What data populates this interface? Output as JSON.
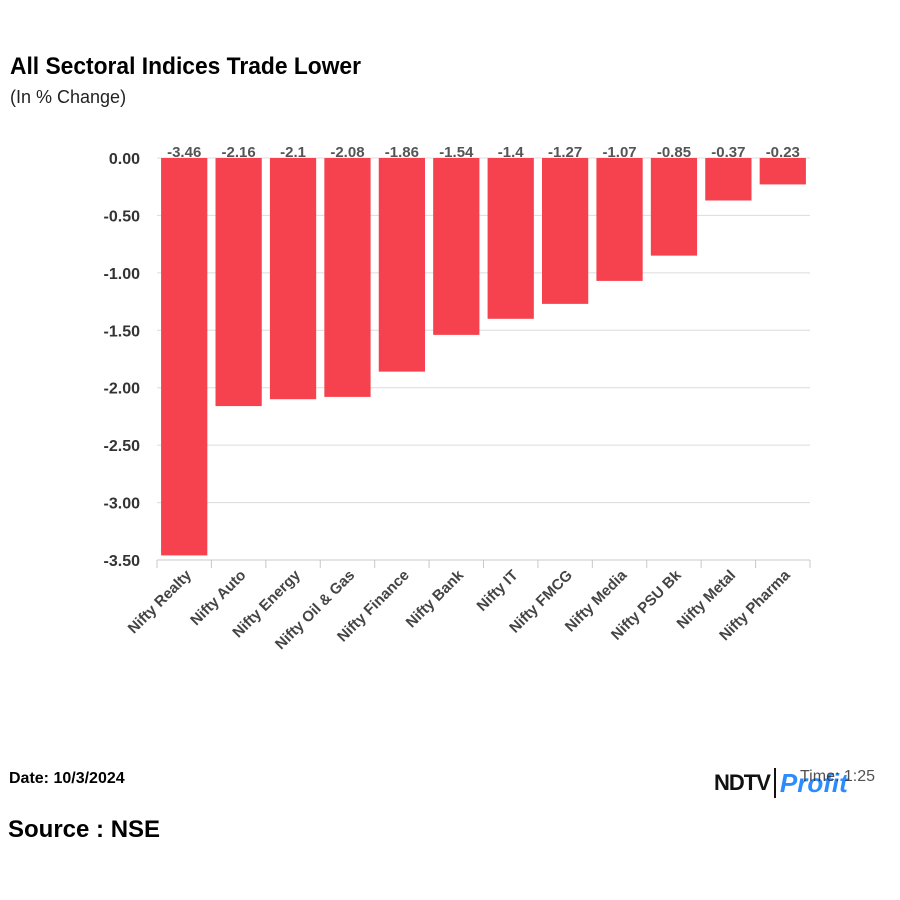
{
  "chart_data": {
    "type": "bar",
    "title": "All Sectoral Indices Trade Lower",
    "subtitle": "(In % Change)",
    "categories": [
      "Nifty Realty",
      "Nifty Auto",
      "Nifty Energy",
      "Nifty Oil & Gas",
      "Nifty Finance",
      "Nifty Bank",
      "Nifty IT",
      "Nifty FMCG",
      "Nifty Media",
      "Nifty PSU Bk",
      "Nifty Metal",
      "Nifty Pharma"
    ],
    "values": [
      -3.46,
      -2.16,
      -2.1,
      -2.08,
      -1.86,
      -1.54,
      -1.4,
      -1.27,
      -1.07,
      -0.85,
      -0.37,
      -0.23
    ],
    "yticks": [
      "0.00",
      "-0.50",
      "-1.00",
      "-1.50",
      "-2.00",
      "-2.50",
      "-3.00",
      "-3.50"
    ],
    "ylim": [
      -3.5,
      0
    ],
    "xlabel": "",
    "ylabel": "",
    "bar_color": "#f5424e",
    "grid": true
  },
  "footer": {
    "date": "Date: 10/3/2024",
    "source": "Source : NSE",
    "time": "Time: 1:25"
  },
  "logo": {
    "brand_a": "NDTV",
    "brand_b": "Profit"
  }
}
